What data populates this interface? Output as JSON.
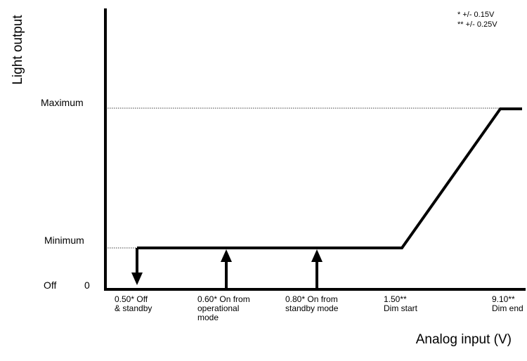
{
  "chart_data": {
    "type": "line",
    "ylabel": "Light output",
    "xlabel": "Analog input (V)",
    "y_levels": {
      "off_label": "Off",
      "zero_label": "0",
      "minimum": "Minimum",
      "maximum": "Maximum"
    },
    "notes": [
      "* +/- 0.15V",
      "** +/- 0.25V"
    ],
    "series": [
      {
        "points": [
          {
            "x": 0.5,
            "level": "minimum"
          },
          {
            "x": 1.5,
            "level": "minimum"
          },
          {
            "x": 9.1,
            "level": "maximum"
          },
          {
            "x": 10.0,
            "level": "maximum"
          }
        ]
      }
    ],
    "thresholds": [
      {
        "x": 0.5,
        "label": "0.50* Off\n& standby",
        "arrow": "down"
      },
      {
        "x": 0.6,
        "label": "0.60* On from\noperational\nmode",
        "arrow": "up"
      },
      {
        "x": 0.8,
        "label": "0.80* On from\nstandby mode",
        "arrow": "up"
      },
      {
        "x": 1.5,
        "label": "1.50**\nDim start",
        "arrow": "none"
      },
      {
        "x": 9.1,
        "label": "9.10**\nDim end",
        "arrow": "none"
      }
    ],
    "grid": false,
    "x_scale": "non-linear, schematic"
  }
}
